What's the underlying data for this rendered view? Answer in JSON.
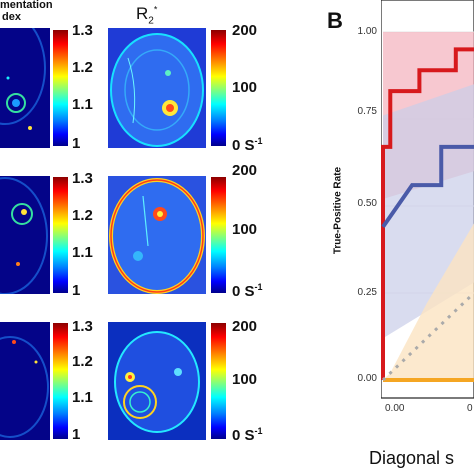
{
  "left_panel": {
    "header_line1": "mentation",
    "header_line2": "dex",
    "r2_title": "R",
    "r2_sub": "2",
    "r2_sup": "*",
    "index_ticks": [
      "1.3",
      "1.2",
      "1.1",
      "1"
    ],
    "r2_ticks": [
      "200",
      "100",
      "0 S"
    ],
    "r2_unit_sup": "-1"
  },
  "panel_b": {
    "label": "B",
    "ylabel": "True-Positive Rate",
    "yticks": [
      "1.00",
      "0.75",
      "0.50",
      "0.25",
      "0.00"
    ],
    "xticks": [
      "0.00",
      "0"
    ],
    "bottom_text": "Diagonal s"
  },
  "colors": {
    "red_line": "#d7191c",
    "blue_line": "#4a5aa8",
    "orange_line": "#f5a623",
    "red_band": "#f4b6c0",
    "blue_band": "#c9cde8",
    "orange_band": "#fbe3c2"
  },
  "chart_data": {
    "type": "line",
    "xlabel": "",
    "ylabel": "True-Positive Rate",
    "ylim": [
      0,
      1
    ],
    "xlim": [
      0,
      0.25
    ],
    "series": [
      {
        "x": [
          0,
          0,
          0.02,
          0.02,
          0.1,
          0.1,
          0.2,
          0.2,
          0.25
        ],
        "values": [
          0,
          0.67,
          0.67,
          0.83,
          0.83,
          0.89,
          0.89,
          0.95,
          0.95
        ],
        "color": "red"
      },
      {
        "x": [
          0,
          0.08,
          0.08,
          0.16,
          0.16,
          0.25
        ],
        "values": [
          0.44,
          0.56,
          0.56,
          0.56,
          0.67,
          0.67
        ],
        "color": "blue"
      },
      {
        "x": [
          0,
          0.25
        ],
        "values": [
          0,
          0
        ],
        "color": "orange"
      },
      {
        "x": [
          0,
          0.25
        ],
        "values": [
          0,
          0.25
        ],
        "color": "gray-dotted"
      }
    ]
  }
}
